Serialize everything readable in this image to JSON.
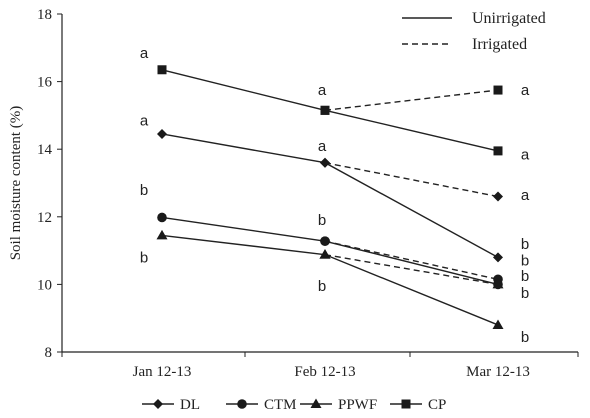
{
  "chart_data": {
    "type": "line",
    "ylabel": "Soil moisture content (%)",
    "categories": [
      "Jan 12-13",
      "Feb 12-13",
      "Mar 12-13"
    ],
    "ylim": [
      8,
      18
    ],
    "yticks": [
      8,
      10,
      12,
      14,
      16,
      18
    ],
    "grid": false,
    "line_legend": [
      {
        "label": "Unirrigated",
        "style": "solid"
      },
      {
        "label": "Irrigated",
        "style": "dashed"
      }
    ],
    "marker_legend": [
      {
        "name": "DL",
        "marker": "diamond"
      },
      {
        "name": "CTM",
        "marker": "circle"
      },
      {
        "name": "PPWF",
        "marker": "triangle"
      },
      {
        "name": "CP",
        "marker": "square"
      }
    ],
    "series": [
      {
        "name": "DL",
        "condition": "Unirrigated",
        "marker": "diamond",
        "values": [
          14.45,
          13.6,
          10.8
        ]
      },
      {
        "name": "DL",
        "condition": "Irrigated",
        "marker": "diamond",
        "values": [
          null,
          13.6,
          12.6
        ]
      },
      {
        "name": "CTM",
        "condition": "Unirrigated",
        "marker": "circle",
        "values": [
          11.98,
          11.28,
          10.0
        ]
      },
      {
        "name": "CTM",
        "condition": "Irrigated",
        "marker": "circle",
        "values": [
          null,
          11.28,
          10.15
        ]
      },
      {
        "name": "PPWF",
        "condition": "Unirrigated",
        "marker": "triangle",
        "values": [
          11.45,
          10.88,
          8.8
        ]
      },
      {
        "name": "PPWF",
        "condition": "Irrigated",
        "marker": "triangle",
        "values": [
          null,
          10.88,
          10.0
        ]
      },
      {
        "name": "CP",
        "condition": "Unirrigated",
        "marker": "square",
        "values": [
          16.35,
          15.15,
          13.95
        ]
      },
      {
        "name": "CP",
        "condition": "Irrigated",
        "marker": "square",
        "values": [
          null,
          15.15,
          15.75
        ]
      }
    ],
    "annotations": [
      {
        "text": "a",
        "category": 0,
        "y": 16.85
      },
      {
        "text": "a",
        "category": 0,
        "y": 14.85
      },
      {
        "text": "b",
        "category": 0,
        "y": 12.8
      },
      {
        "text": "b",
        "category": 0,
        "y": 10.8
      },
      {
        "text": "a",
        "category": 1,
        "y": 15.75
      },
      {
        "text": "a",
        "category": 1,
        "y": 14.1
      },
      {
        "text": "b",
        "category": 1,
        "y": 11.9
      },
      {
        "text": "b",
        "category": 1,
        "y": 9.95
      },
      {
        "text": "a",
        "category": 2,
        "y": 15.75
      },
      {
        "text": "a",
        "category": 2,
        "y": 13.85
      },
      {
        "text": "a",
        "category": 2,
        "y": 12.65
      },
      {
        "text": "b",
        "category": 2,
        "y": 11.2
      },
      {
        "text": "b",
        "category": 2,
        "y": 10.7
      },
      {
        "text": "b",
        "category": 2,
        "y": 10.25
      },
      {
        "text": "b",
        "category": 2,
        "y": 9.75
      },
      {
        "text": "b",
        "category": 2,
        "y": 8.45
      }
    ]
  }
}
